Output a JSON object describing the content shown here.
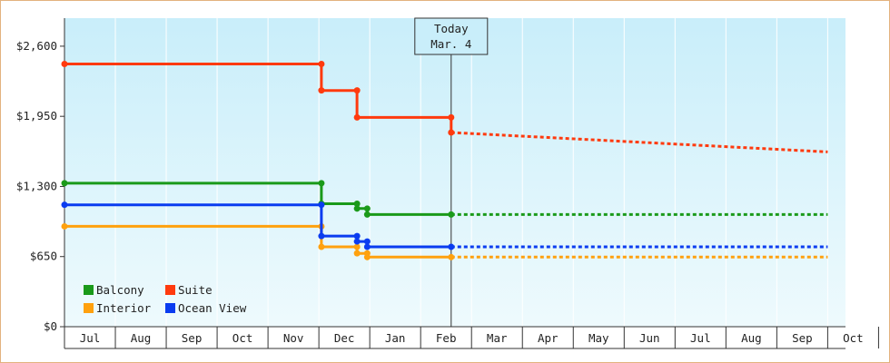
{
  "chart_data": {
    "type": "line",
    "step": true,
    "title": "",
    "xlabel": "",
    "ylabel": "",
    "ylim": [
      0,
      2860
    ],
    "y_ticks": [
      0,
      650,
      1300,
      1950,
      2600
    ],
    "y_tick_labels": [
      "$0",
      "$650",
      "$1,300",
      "$1,950",
      "$2,600"
    ],
    "x_ticks": [
      "Jul",
      "Aug",
      "Sep",
      "Oct",
      "Nov",
      "Dec",
      "Jan",
      "Feb",
      "Mar",
      "Apr",
      "May",
      "Jun",
      "Jul",
      "Aug",
      "Sep",
      "Oct"
    ],
    "today_marker": {
      "line1": "Today",
      "line2": "Mar. 4",
      "x": 7.6
    },
    "legend_position": "bottom-left",
    "series": [
      {
        "name": "Balcony",
        "color": "#1a9a1a",
        "points": [
          [
            0,
            1330
          ],
          [
            5.05,
            1330
          ],
          [
            5.05,
            1140
          ],
          [
            5.75,
            1140
          ],
          [
            5.75,
            1095
          ],
          [
            5.95,
            1095
          ],
          [
            5.95,
            1040
          ],
          [
            7.6,
            1040
          ]
        ],
        "forecast": [
          [
            7.6,
            1040
          ],
          [
            15.0,
            1040
          ]
        ]
      },
      {
        "name": "Suite",
        "color": "#ff3a0e",
        "points": [
          [
            0,
            2435
          ],
          [
            5.05,
            2435
          ],
          [
            5.05,
            2190
          ],
          [
            5.75,
            2190
          ],
          [
            5.75,
            1940
          ],
          [
            7.6,
            1940
          ],
          [
            7.6,
            1800
          ]
        ],
        "forecast": [
          [
            7.6,
            1800
          ],
          [
            15.0,
            1620
          ]
        ]
      },
      {
        "name": "Interior",
        "color": "#ffa10e",
        "points": [
          [
            0,
            930
          ],
          [
            5.05,
            930
          ],
          [
            5.05,
            740
          ],
          [
            5.75,
            740
          ],
          [
            5.75,
            680
          ],
          [
            5.95,
            680
          ],
          [
            5.95,
            645
          ],
          [
            7.6,
            645
          ]
        ],
        "forecast": [
          [
            7.6,
            645
          ],
          [
            15.0,
            645
          ]
        ]
      },
      {
        "name": "Ocean View",
        "color": "#0a3cf0",
        "points": [
          [
            0,
            1130
          ],
          [
            5.05,
            1130
          ],
          [
            5.05,
            840
          ],
          [
            5.75,
            840
          ],
          [
            5.75,
            790
          ],
          [
            5.95,
            790
          ],
          [
            5.95,
            740
          ],
          [
            7.6,
            740
          ]
        ],
        "forecast": [
          [
            7.6,
            740
          ],
          [
            15.0,
            740
          ]
        ]
      }
    ]
  }
}
